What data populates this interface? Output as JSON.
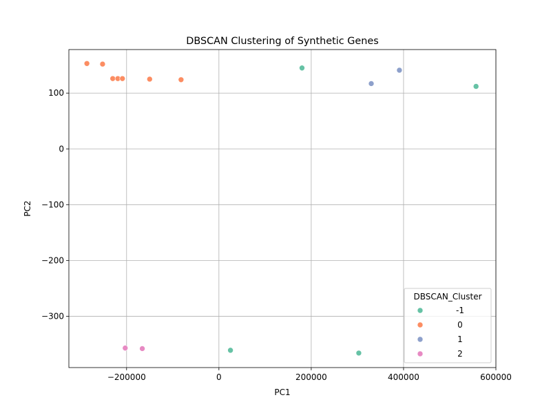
{
  "chart_data": {
    "type": "scatter",
    "title": "DBSCAN Clustering of Synthetic Genes",
    "xlabel": "PC1",
    "ylabel": "PC2",
    "xlim": [
      -325000,
      600000
    ],
    "ylim": [
      -392,
      178
    ],
    "xticks": [
      -200000,
      0,
      200000,
      400000,
      600000
    ],
    "xtick_labels": [
      "−200000",
      "0",
      "200000",
      "400000",
      "600000"
    ],
    "yticks": [
      100,
      0,
      -100,
      -200,
      -300
    ],
    "ytick_labels": [
      "100",
      "0",
      "−100",
      "−200",
      "−300"
    ],
    "grid": true,
    "legend": {
      "title": "DBSCAN_Cluster",
      "placement": "bottom-right"
    },
    "series": [
      {
        "name": "-1",
        "color": "#66c2a5",
        "points": [
          {
            "x": 180000,
            "y": 145
          },
          {
            "x": 557000,
            "y": 112
          },
          {
            "x": 25000,
            "y": -361
          },
          {
            "x": 303000,
            "y": -366
          }
        ]
      },
      {
        "name": "0",
        "color": "#fc8d62",
        "points": [
          {
            "x": -286000,
            "y": 153
          },
          {
            "x": -252000,
            "y": 152
          },
          {
            "x": -230000,
            "y": 126
          },
          {
            "x": -219000,
            "y": 126
          },
          {
            "x": -209000,
            "y": 126
          },
          {
            "x": -150000,
            "y": 125
          },
          {
            "x": -82000,
            "y": 124
          }
        ]
      },
      {
        "name": "1",
        "color": "#8da0cb",
        "points": [
          {
            "x": 330000,
            "y": 117
          },
          {
            "x": 391000,
            "y": 141
          }
        ]
      },
      {
        "name": "2",
        "color": "#e78ac3",
        "points": [
          {
            "x": -203000,
            "y": -357
          },
          {
            "x": -166000,
            "y": -358
          }
        ]
      }
    ]
  }
}
